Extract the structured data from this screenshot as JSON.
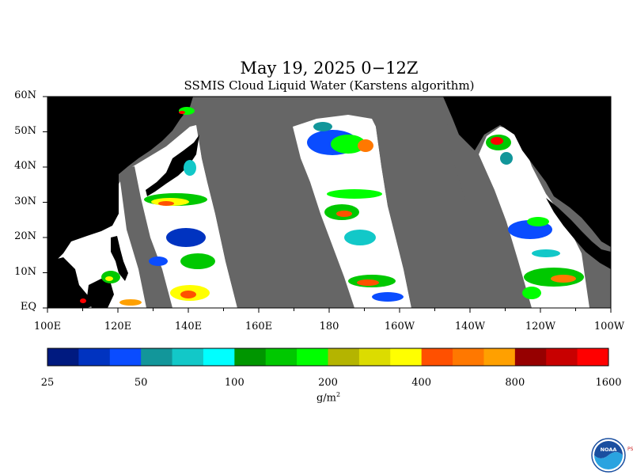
{
  "title": "May 19, 2025 0−12Z",
  "subtitle": "SSMIS Cloud Liquid Water (Karstens algorithm)",
  "map": {
    "lon_range": [
      100,
      260
    ],
    "lat_range": [
      0,
      60
    ],
    "land_color": "#000000",
    "no_data_color": "#666666",
    "ocean_clear_color": "#ffffff",
    "lat_ticks": [
      "60N",
      "50N",
      "40N",
      "30N",
      "20N",
      "10N",
      "EQ"
    ],
    "lon_ticks": [
      "100E",
      "120E",
      "140E",
      "160E",
      "180",
      "160W",
      "140W",
      "120W",
      "100W"
    ]
  },
  "colorbar": {
    "colors": [
      "#001a80",
      "#0033c0",
      "#0a4cff",
      "#12969a",
      "#12c8c8",
      "#00ffff",
      "#009600",
      "#00c800",
      "#00ff00",
      "#b4b400",
      "#dcdc00",
      "#ffff00",
      "#ff5000",
      "#ff7800",
      "#ffa000",
      "#960000",
      "#c80000",
      "#ff0000"
    ],
    "labels": [
      "25",
      "50",
      "100",
      "200",
      "400",
      "800",
      "1600"
    ],
    "unit_base": "g/m",
    "unit_sup": "2"
  },
  "logo": {
    "text": "NOAA",
    "side_text": "PSL",
    "icon": "noaa-logo-icon"
  }
}
